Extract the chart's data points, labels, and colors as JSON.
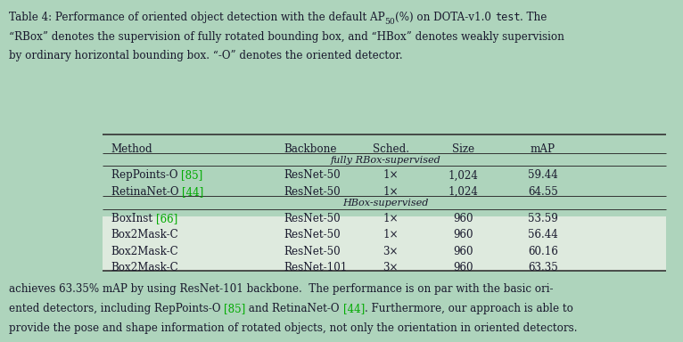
{
  "background_color": "#aed4bc",
  "col_headers": [
    "Method",
    "Backbone",
    "Sched.",
    "Size",
    "mAP"
  ],
  "section1_label": "fully RBox-supervised",
  "section2_label": "HBox-supervised",
  "rows_rbox": [
    [
      "RepPoints-O [85]",
      "ResNet-50",
      "1×",
      "1,024",
      "59.44"
    ],
    [
      "RetinaNet-O [44]",
      "ResNet-50",
      "1×",
      "1,024",
      "64.55"
    ]
  ],
  "rows_hbox": [
    [
      "BoxInst [66]",
      "ResNet-50",
      "1×",
      "960",
      "53.59"
    ],
    [
      "Box2Mask-C",
      "ResNet-50",
      "1×",
      "960",
      "56.44"
    ],
    [
      "Box2Mask-C",
      "ResNet-50",
      "3×",
      "960",
      "60.16"
    ],
    [
      "Box2Mask-C",
      "ResNet-101",
      "3×",
      "960",
      "63.35"
    ]
  ],
  "rows_rbox_cite_indices": [
    0,
    1
  ],
  "rows_hbox_cite_indices": [
    0
  ],
  "cite_color": "#00aa00",
  "highlight_color": "#deeade",
  "footer_text": "achieves 63.35% mAP by using ResNet-101 backbone.  The performance is on par with the basic ori-\nented detectors, including RepPoints-O [85] and RetinaNet-O [44]. Furthermore, our approach is able to\nprovide the pose and shape information of rotated objects, not only the orientation in oriented detectors.",
  "footer_cite_color": "#00aa00",
  "text_color": "#1a1a2e",
  "line_color": "#333333"
}
